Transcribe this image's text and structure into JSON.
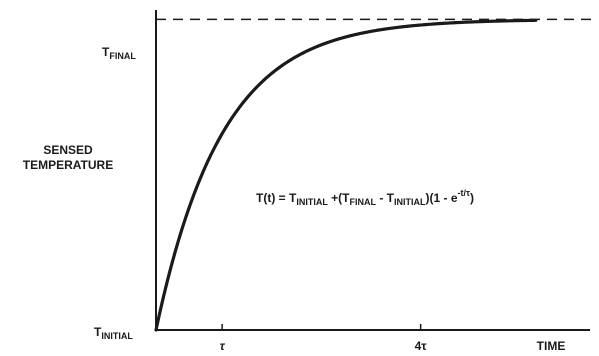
{
  "chart_data": {
    "type": "line",
    "title": "",
    "xlabel": "TIME",
    "ylabel": [
      "SENSED",
      "TEMPERATURE"
    ],
    "y_ticks": [
      {
        "main": "T",
        "sub": "FINAL",
        "value": 1
      },
      {
        "main": "T",
        "sub": "INITIAL",
        "value": 0
      }
    ],
    "x_ticks": [
      {
        "label": "τ",
        "value": 1
      },
      {
        "label": "4τ",
        "value": 4
      }
    ],
    "xlim": [
      0,
      6.56
    ],
    "ylim": [
      0,
      1.03
    ],
    "series": [
      {
        "function": "1 - exp(-t/tau)",
        "x": [
          0,
          0.25,
          0.5,
          0.75,
          1,
          1.25,
          1.5,
          2,
          2.5,
          3,
          3.5,
          4,
          4.5,
          5,
          5.5,
          5.74
        ],
        "y": [
          0,
          0.221,
          0.393,
          0.528,
          0.632,
          0.713,
          0.777,
          0.865,
          0.918,
          0.95,
          0.97,
          0.982,
          0.989,
          0.993,
          0.996,
          0.997
        ]
      }
    ],
    "reference_line": {
      "y": 1,
      "style": "dashed"
    },
    "equation": {
      "parts": [
        {
          "t": "T(t) = T",
          "s": "normal"
        },
        {
          "t": "INITIAL",
          "s": "sub"
        },
        {
          "t": " +(T",
          "s": "normal"
        },
        {
          "t": "FINAL",
          "s": "sub"
        },
        {
          "t": " - T",
          "s": "normal"
        },
        {
          "t": "INITIAL",
          "s": "sub"
        },
        {
          "t": ")(1 - e",
          "s": "normal"
        },
        {
          "t": "-t/τ",
          "s": "sup"
        },
        {
          "t": ")",
          "s": "normal"
        }
      ]
    }
  }
}
